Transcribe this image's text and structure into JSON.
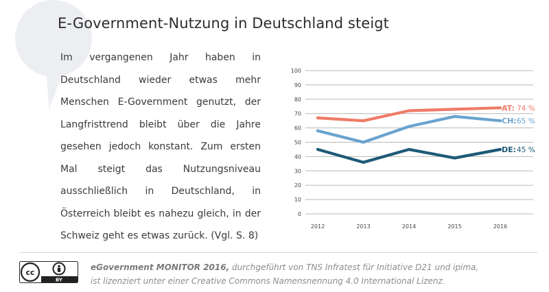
{
  "title": "E-Government-Nutzung in Deutschland steigt",
  "body_text": "Im vergangenen Jahr haben in Deutschland wieder etwas mehr Menschen E-Government genutzt, der Langfristtrend bleibt über die Jahre gesehen jedoch konstant. Zum ersten Mal steigt das Nutzungsniveau ausschließlich in Deutschland, in Österreich bleibt es nahezu gleich, in der Schweiz geht es etwas zurück. (Vgl. S. 8)",
  "chart_data": {
    "type": "line",
    "x": [
      "2012",
      "2013",
      "2014",
      "2015",
      "2016"
    ],
    "ylim": [
      0,
      100
    ],
    "yticks": [
      0,
      10,
      20,
      30,
      40,
      50,
      60,
      70,
      80,
      90,
      100
    ],
    "grid": true,
    "series": [
      {
        "name": "AT",
        "label": "AT:",
        "value_label": "74 %",
        "color": "#ef7b67",
        "values": [
          67,
          65,
          72,
          73,
          74
        ]
      },
      {
        "name": "CH",
        "label": "CH:",
        "value_label": "65 %",
        "color": "#6aa3cf",
        "values": [
          58,
          50,
          61,
          68,
          65
        ]
      },
      {
        "name": "DE",
        "label": "DE:",
        "value_label": "45 %",
        "color": "#1d5a77",
        "values": [
          45,
          36,
          45,
          39,
          45
        ]
      }
    ]
  },
  "footer": {
    "line1_bold": "eGovernment MONITOR 2016,",
    "line1_rest": " durchgeführt von TNS Infratest für Initiative D21 und ipima,",
    "line2": "ist lizenziert unter einer Creative Commons Namensnennung 4.0 International Lizenz."
  },
  "license_badge": {
    "cc": "cc",
    "by": "BY"
  }
}
